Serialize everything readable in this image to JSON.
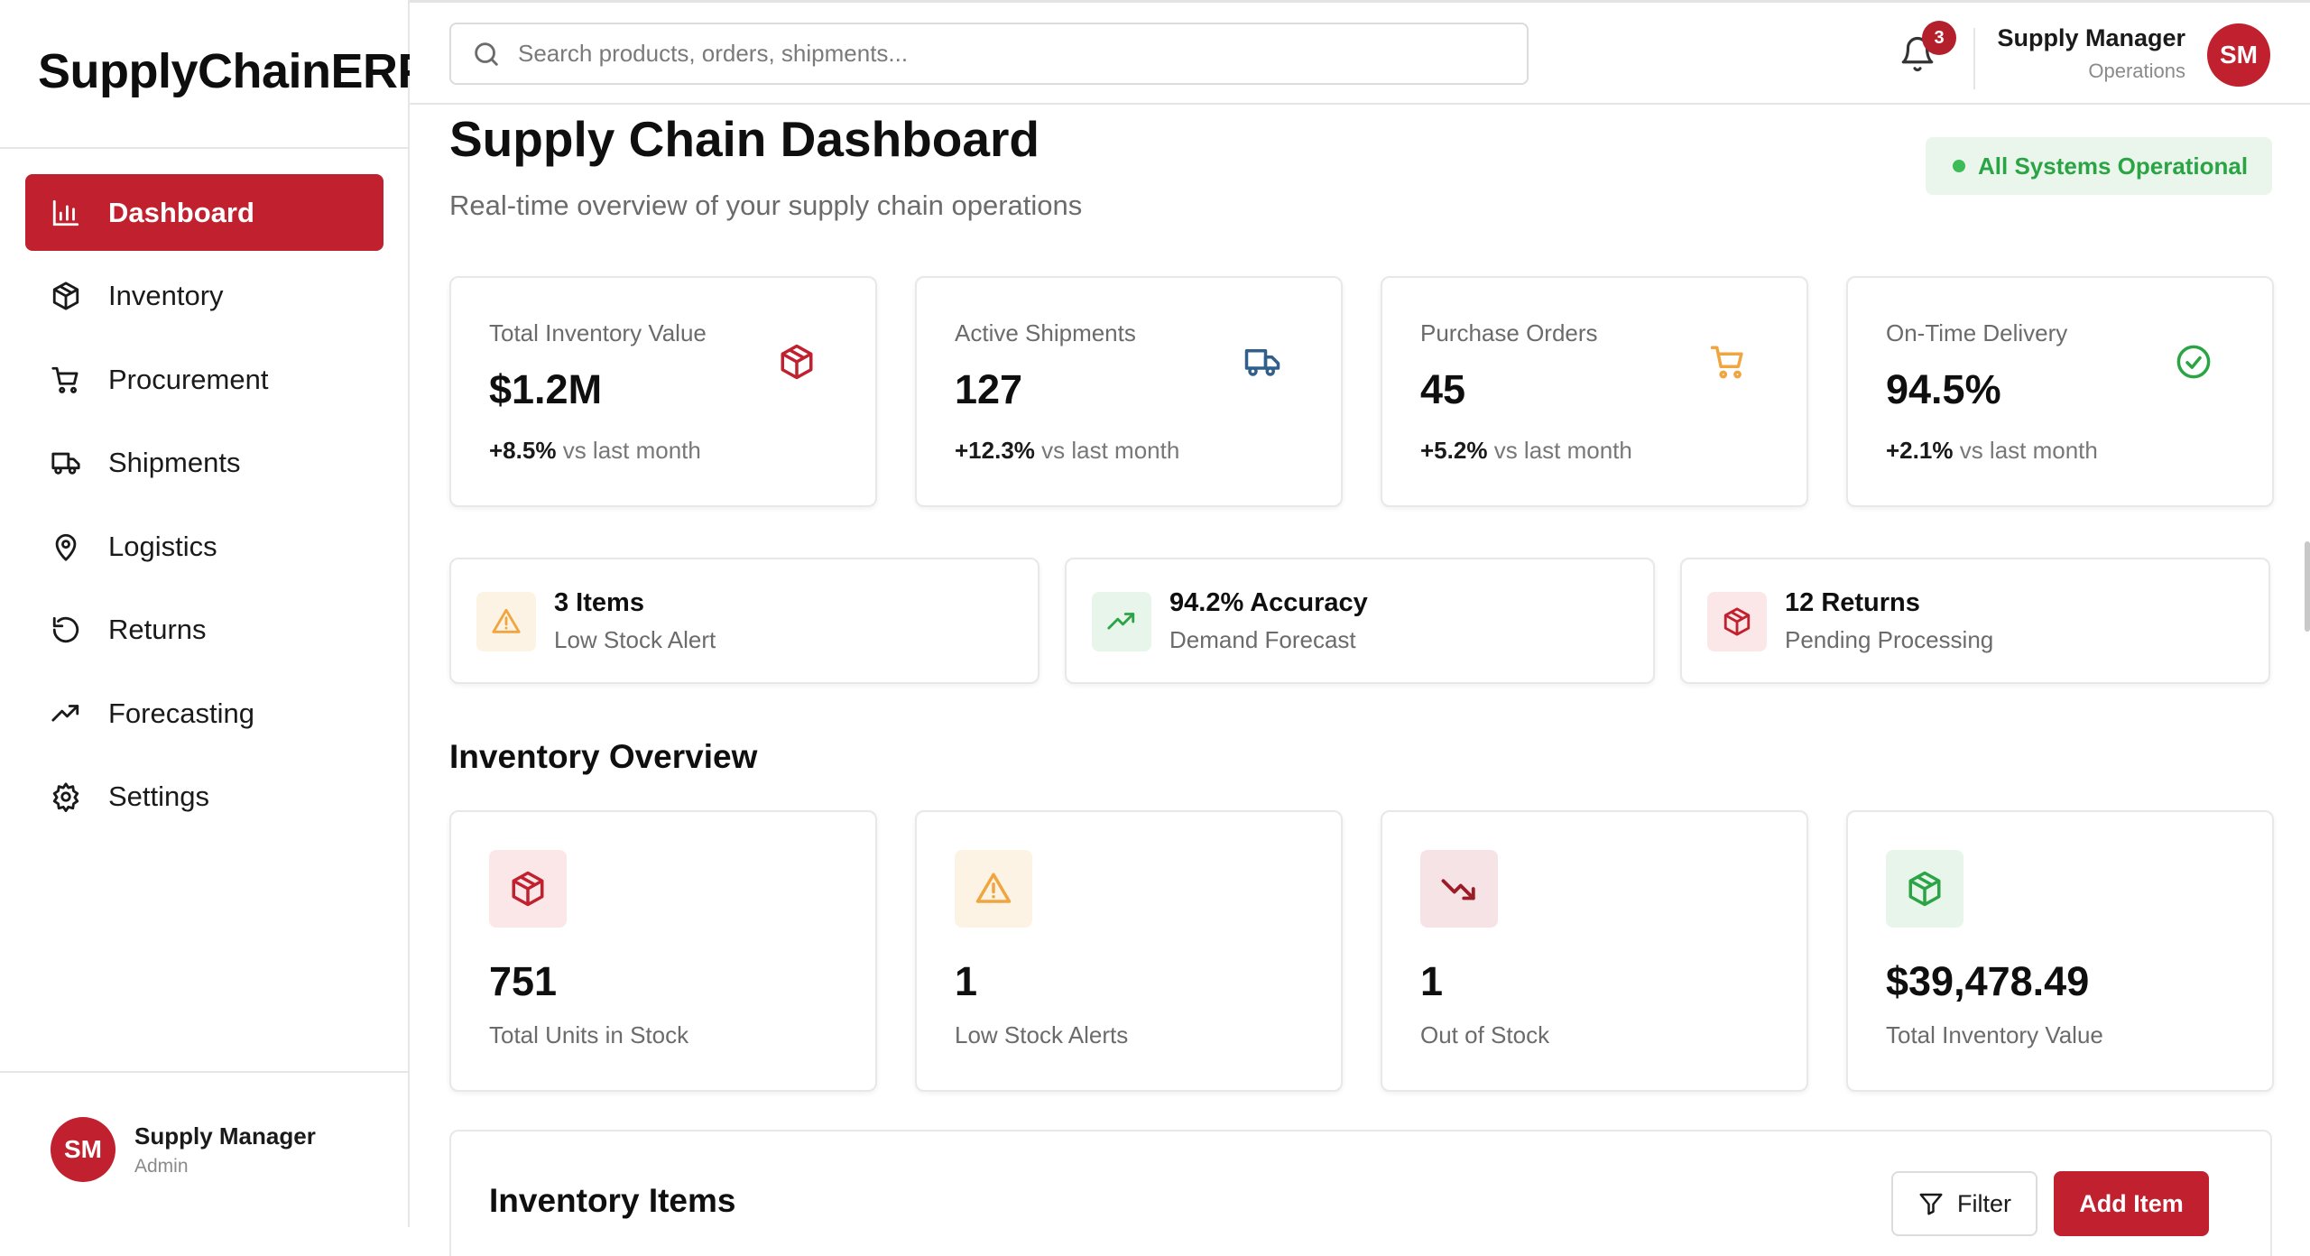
{
  "app": {
    "logo": "SupplyChainERP"
  },
  "colors": {
    "brand": "#c1202e",
    "success": "#2aa444",
    "warning": "#f0a640",
    "info": "#2f5f8a"
  },
  "sidebar": {
    "items": [
      {
        "label": "Dashboard",
        "icon": "bar-chart-icon",
        "active": true
      },
      {
        "label": "Inventory",
        "icon": "package-icon"
      },
      {
        "label": "Procurement",
        "icon": "cart-icon"
      },
      {
        "label": "Shipments",
        "icon": "truck-icon"
      },
      {
        "label": "Logistics",
        "icon": "map-pin-icon"
      },
      {
        "label": "Returns",
        "icon": "rotate-ccw-icon"
      },
      {
        "label": "Forecasting",
        "icon": "trending-up-icon"
      },
      {
        "label": "Settings",
        "icon": "gear-icon"
      }
    ],
    "user": {
      "initials": "SM",
      "name": "Supply Manager",
      "role": "Admin"
    }
  },
  "header": {
    "search_placeholder": "Search products, orders, shipments...",
    "notification_count": "3",
    "user": {
      "name": "Supply Manager",
      "role": "Operations",
      "initials": "SM"
    }
  },
  "page": {
    "title": "Supply Chain Dashboard",
    "subtitle": "Real-time overview of your supply chain operations",
    "status": "All Systems Operational"
  },
  "kpis": [
    {
      "label": "Total Inventory Value",
      "value": "$1.2M",
      "change": "+8.5%",
      "change_suffix": "vs last month",
      "icon": "package-icon"
    },
    {
      "label": "Active Shipments",
      "value": "127",
      "change": "+12.3%",
      "change_suffix": "vs last month",
      "icon": "truck-icon"
    },
    {
      "label": "Purchase Orders",
      "value": "45",
      "change": "+5.2%",
      "change_suffix": "vs last month",
      "icon": "cart-icon"
    },
    {
      "label": "On-Time Delivery",
      "value": "94.5%",
      "change": "+2.1%",
      "change_suffix": "vs last month",
      "icon": "check-circle-icon"
    }
  ],
  "alerts": [
    {
      "title": "3 Items",
      "subtitle": "Low Stock Alert",
      "icon": "warning-icon"
    },
    {
      "title": "94.2% Accuracy",
      "subtitle": "Demand Forecast",
      "icon": "trending-up-icon"
    },
    {
      "title": "12 Returns",
      "subtitle": "Pending Processing",
      "icon": "package-icon"
    }
  ],
  "inventory_overview": {
    "title": "Inventory Overview",
    "cards": [
      {
        "value": "751",
        "label": "Total Units in Stock",
        "icon": "package-icon"
      },
      {
        "value": "1",
        "label": "Low Stock Alerts",
        "icon": "warning-icon"
      },
      {
        "value": "1",
        "label": "Out of Stock",
        "icon": "trending-down-icon"
      },
      {
        "value": "$39,478.49",
        "label": "Total Inventory Value",
        "icon": "package-icon"
      }
    ]
  },
  "inventory_items": {
    "title": "Inventory Items",
    "filter_label": "Filter",
    "add_label": "Add Item"
  }
}
